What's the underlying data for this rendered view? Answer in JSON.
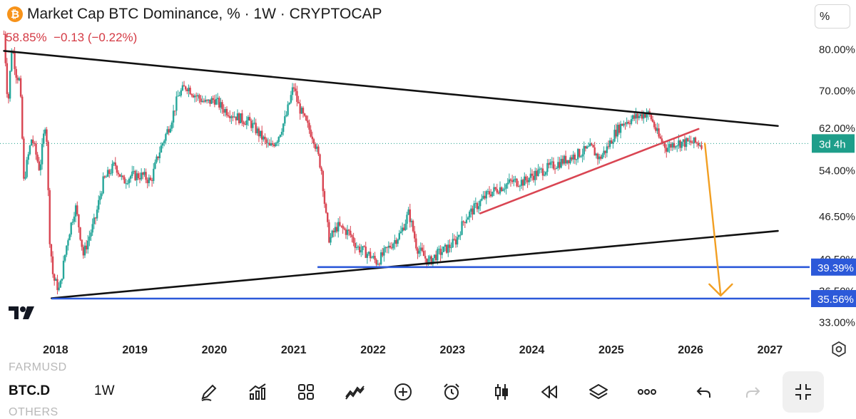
{
  "header": {
    "logo_glyph": "₿",
    "title": "Market Cap BTC Dominance, % · 1W · CRYPTOCAP",
    "quote": "58.85%  −0.13 (−0.22%)",
    "scale_button": "%"
  },
  "chart_data": {
    "type": "candlestick",
    "title": "Market Cap BTC Dominance, % · 1W · CRYPTOCAP",
    "x_ticks": [
      "2018",
      "2019",
      "2020",
      "2021",
      "2022",
      "2023",
      "2024",
      "2025",
      "2026",
      "2027"
    ],
    "xlim": [
      2017.3,
      2027.5
    ],
    "y_ticks": [
      "80.00%",
      "70.00%",
      "62.00%",
      "54.00%",
      "46.50%",
      "40.50%",
      "36.50%",
      "33.00%"
    ],
    "y_scale": "log",
    "ylim": [
      31.6,
      85.5
    ],
    "last_value": 58.85,
    "change": -0.13,
    "change_percent": -0.22,
    "countdown_label": "3d 4h",
    "series_path": [
      [
        2017.35,
        84
      ],
      [
        2017.4,
        66
      ],
      [
        2017.45,
        81
      ],
      [
        2017.5,
        74
      ],
      [
        2017.55,
        72
      ],
      [
        2017.6,
        52
      ],
      [
        2017.7,
        60
      ],
      [
        2017.8,
        54
      ],
      [
        2017.88,
        64
      ],
      [
        2017.92,
        44
      ],
      [
        2017.97,
        38
      ],
      [
        2018.05,
        36.5
      ],
      [
        2018.15,
        43
      ],
      [
        2018.25,
        48
      ],
      [
        2018.35,
        41
      ],
      [
        2018.5,
        46
      ],
      [
        2018.6,
        52
      ],
      [
        2018.75,
        55
      ],
      [
        2018.85,
        52
      ],
      [
        2018.95,
        53
      ],
      [
        2019.1,
        53
      ],
      [
        2019.2,
        52
      ],
      [
        2019.3,
        57
      ],
      [
        2019.45,
        63
      ],
      [
        2019.55,
        69
      ],
      [
        2019.65,
        71
      ],
      [
        2019.75,
        69
      ],
      [
        2019.9,
        67
      ],
      [
        2020.0,
        68
      ],
      [
        2020.1,
        66
      ],
      [
        2020.2,
        65
      ],
      [
        2020.3,
        64
      ],
      [
        2020.45,
        63
      ],
      [
        2020.6,
        60
      ],
      [
        2020.7,
        58
      ],
      [
        2020.8,
        60
      ],
      [
        2020.9,
        64
      ],
      [
        2021.0,
        71
      ],
      [
        2021.05,
        67
      ],
      [
        2021.15,
        63
      ],
      [
        2021.25,
        60
      ],
      [
        2021.35,
        54
      ],
      [
        2021.4,
        47
      ],
      [
        2021.45,
        43
      ],
      [
        2021.55,
        45
      ],
      [
        2021.7,
        44
      ],
      [
        2021.8,
        42
      ],
      [
        2021.95,
        41
      ],
      [
        2022.05,
        40
      ],
      [
        2022.2,
        42
      ],
      [
        2022.35,
        44
      ],
      [
        2022.45,
        47
      ],
      [
        2022.55,
        42
      ],
      [
        2022.7,
        40
      ],
      [
        2022.8,
        41
      ],
      [
        2022.95,
        42
      ],
      [
        2023.05,
        43
      ],
      [
        2023.15,
        46
      ],
      [
        2023.3,
        48
      ],
      [
        2023.45,
        50
      ],
      [
        2023.6,
        51
      ],
      [
        2023.75,
        52
      ],
      [
        2023.9,
        52
      ],
      [
        2024.0,
        53
      ],
      [
        2024.15,
        54
      ],
      [
        2024.3,
        55
      ],
      [
        2024.45,
        56
      ],
      [
        2024.6,
        57
      ],
      [
        2024.75,
        58
      ],
      [
        2024.85,
        56
      ],
      [
        2024.95,
        58
      ],
      [
        2025.05,
        61
      ],
      [
        2025.15,
        63
      ],
      [
        2025.3,
        64
      ],
      [
        2025.45,
        65
      ],
      [
        2025.5,
        64
      ],
      [
        2025.6,
        60
      ],
      [
        2025.7,
        58
      ],
      [
        2025.8,
        59
      ],
      [
        2025.9,
        59
      ],
      [
        2026.05,
        59
      ],
      [
        2026.15,
        58.85
      ]
    ],
    "trendlines": [
      {
        "name": "upper-resistance",
        "color": "#111111",
        "points": [
          [
            2017.35,
            79.5
          ],
          [
            2027.1,
            62.3
          ]
        ]
      },
      {
        "name": "lower-support",
        "color": "#111111",
        "points": [
          [
            2017.95,
            35.6
          ],
          [
            2027.1,
            44.3
          ]
        ]
      },
      {
        "name": "rising-support",
        "color": "#d94552",
        "points": [
          [
            2023.35,
            46.9
          ],
          [
            2026.1,
            61.7
          ]
        ]
      }
    ],
    "horizontal_levels": [
      {
        "value": 39.39,
        "label": "39.39%",
        "color": "#2c59d9",
        "from": 2021.3
      },
      {
        "value": 35.56,
        "label": "35.56%",
        "color": "#2c59d9",
        "from": 2017.95
      }
    ],
    "projection_arrow": {
      "color": "#f29f22",
      "from": [
        2026.18,
        58.85
      ],
      "to": [
        2026.38,
        35.9
      ]
    },
    "colors": {
      "up": "#26a69a",
      "down": "#d94552",
      "last_price": "#1e9e8a"
    }
  },
  "toolbar": {
    "ghost_top": "FARMUSD",
    "symbol": "BTC.D",
    "timeframe": "1W",
    "ghost_bottom": "OTHERS"
  },
  "icons": [
    "pen-icon",
    "indicators-icon",
    "apps-grid-icon",
    "chart-pattern-icon",
    "add-circle-icon",
    "alarm-icon",
    "candles-icon",
    "replay-icon",
    "layers-icon",
    "more-icon",
    "undo-icon",
    "redo-icon",
    "collapse-icon",
    "settings-gear-icon"
  ]
}
